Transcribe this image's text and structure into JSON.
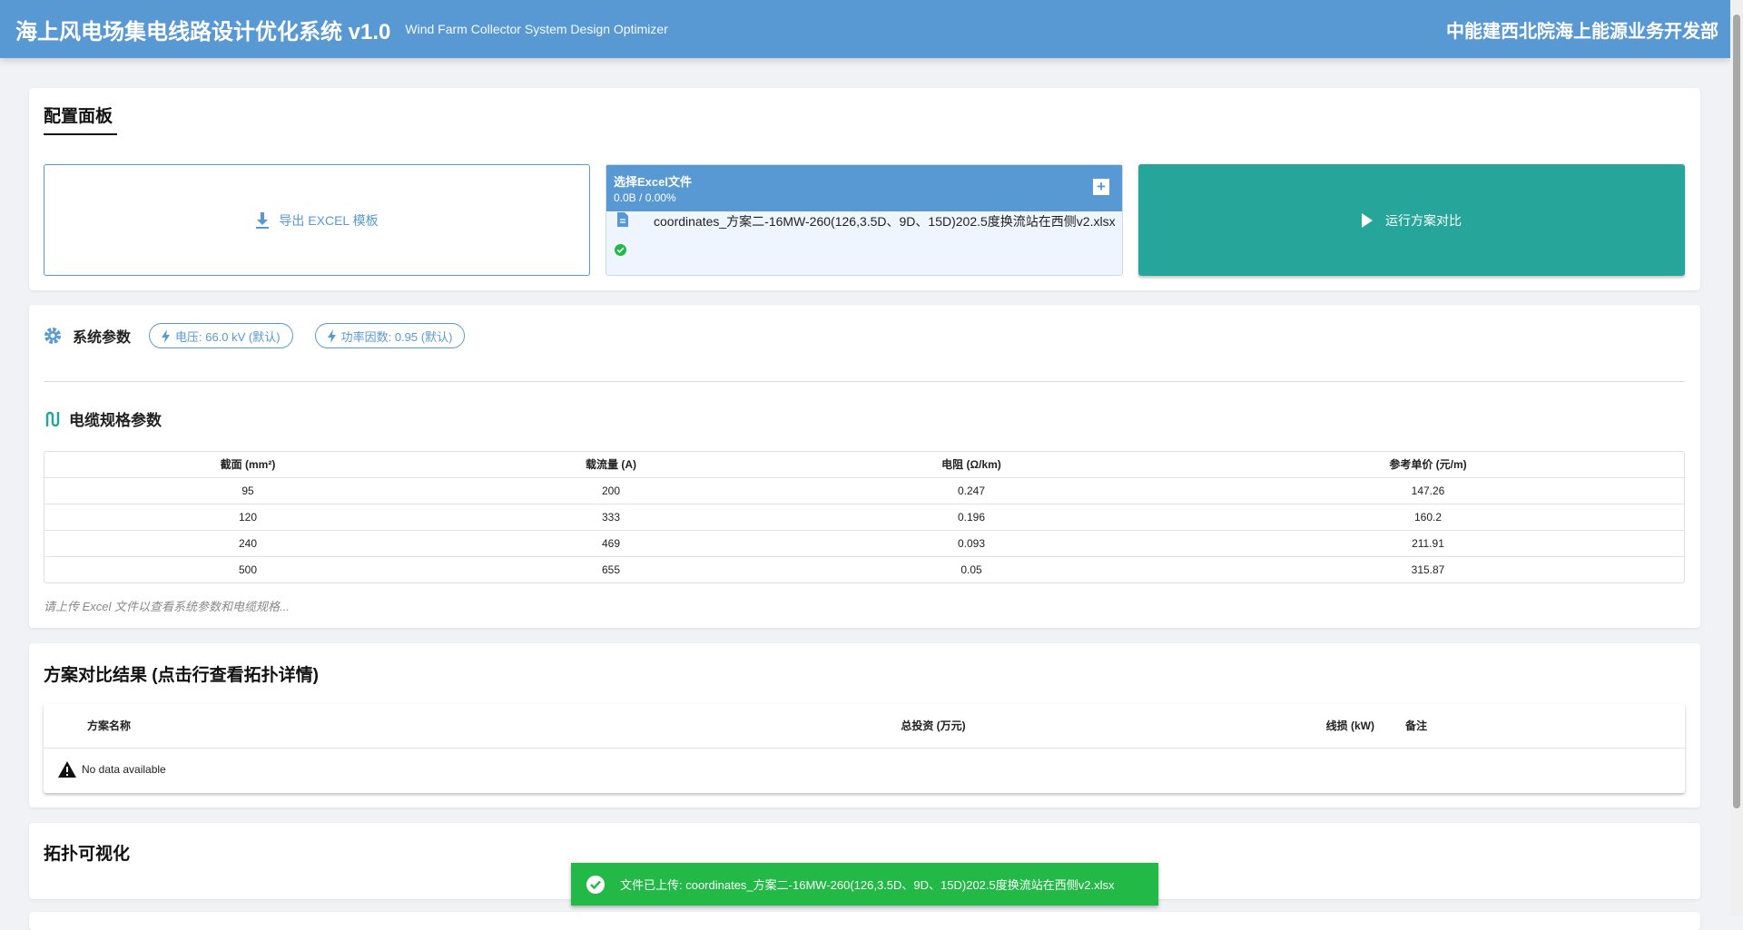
{
  "header": {
    "title": "海上风电场集电线路设计优化系统 v1.0",
    "subtitle": "Wind Farm Collector System Design Optimizer",
    "org": "中能建西北院海上能源业务开发部"
  },
  "config": {
    "title": "配置面板",
    "export_label": "导出 EXCEL 模板",
    "upload": {
      "title": "选择Excel文件",
      "progress": "0.0B / 0.00%",
      "file_name": "coordinates_方案二-16MW-260(126,3.5D、9D、15D)202.5度换流站在西侧v2.xlsx",
      "status": "uploaded"
    },
    "run_label": "运行方案对比"
  },
  "params": {
    "title": "系统参数",
    "voltage": "电压: 66.0 kV (默认)",
    "power_factor": "功率因数: 0.95 (默认)",
    "cable_title": "电缆规格参数",
    "columns": [
      "截面 (mm²)",
      "载流量 (A)",
      "电阻 (Ω/km)",
      "参考单价 (元/m)"
    ],
    "rows": [
      [
        "95",
        "200",
        "0.247",
        "147.26"
      ],
      [
        "120",
        "333",
        "0.196",
        "160.2"
      ],
      [
        "240",
        "469",
        "0.093",
        "211.91"
      ],
      [
        "500",
        "655",
        "0.05",
        "315.87"
      ]
    ],
    "hint": "请上传 Excel 文件以查看系统参数和电缆规格..."
  },
  "results": {
    "title": "方案对比结果 (点击行查看拓扑详情)",
    "columns": [
      "方案名称",
      "总投资 (万元)",
      "线损 (kW)",
      "备注"
    ],
    "empty": "No data available"
  },
  "topology": {
    "title": "拓扑可视化"
  },
  "toast": {
    "message": "文件已上传: coordinates_方案二-16MW-260(126,3.5D、9D、15D)202.5度换流站在西侧v2.xlsx"
  },
  "colors": {
    "primary": "#5899d4",
    "teal": "#26a69a",
    "success": "#22b947"
  }
}
